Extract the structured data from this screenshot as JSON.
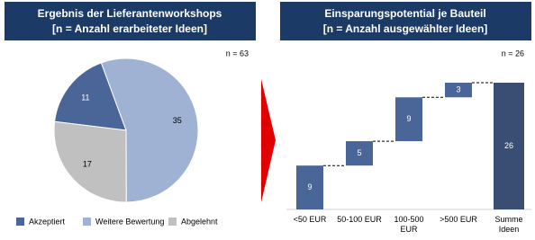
{
  "charts": [
    {
      "type": "pie",
      "title": "Ergebnis der Lieferantenworkshops",
      "subtitle": "[n = Anzahl erarbeiteter Ideen]",
      "note": "n = 63",
      "categories": [
        "Akzeptiert",
        "Weitere Bewertung",
        "Abgelehnt"
      ],
      "values": [
        11,
        35,
        17
      ],
      "colors": [
        "#4a6597",
        "#9fb2d3",
        "#c0c0c0"
      ],
      "label_colors": [
        "#ffffff",
        "#000000",
        "#000000"
      ],
      "legend": "bottom"
    },
    {
      "type": "waterfall",
      "title": "Einsparungspotential je Bauteil",
      "subtitle": "[n = Anzahl ausgewählter Ideen]",
      "note": "n = 26",
      "categories": [
        "<50 EUR",
        "50-100 EUR",
        "100-500 EUR",
        ">500 EUR",
        "Summe Ideen"
      ],
      "values": [
        9,
        5,
        9,
        3,
        26
      ],
      "totals": [
        false,
        false,
        false,
        false,
        true
      ],
      "color": "#4a6597",
      "total_color": "#3a4d72"
    }
  ]
}
